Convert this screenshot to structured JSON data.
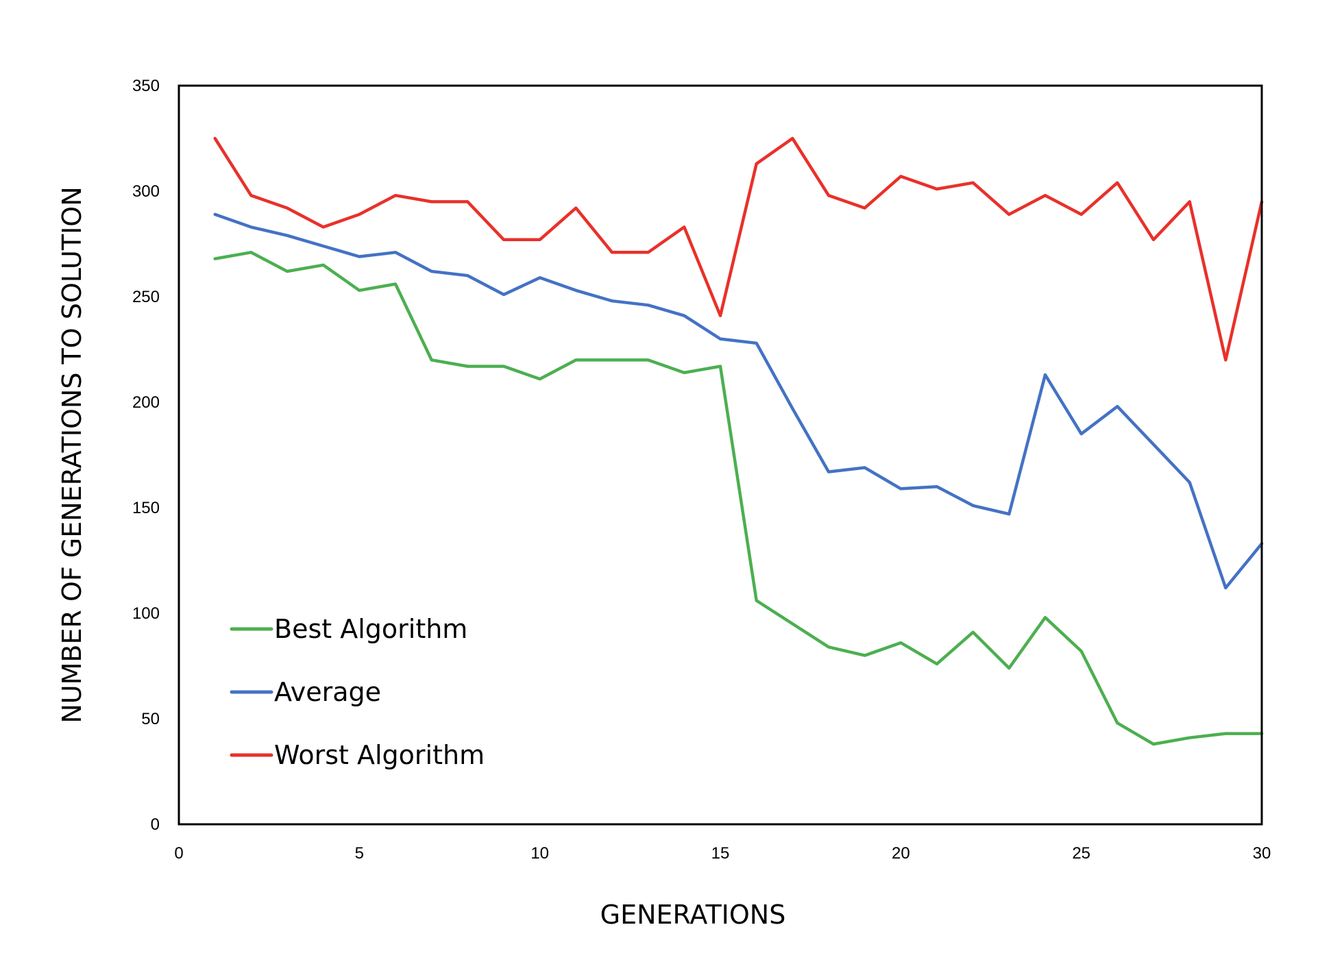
{
  "chart_data": {
    "type": "line",
    "title": "",
    "xlabel": "GENERATIONS",
    "ylabel": "NUMBER OF GENERATIONS TO SOLUTION",
    "xlim": [
      0,
      30
    ],
    "ylim": [
      0,
      350
    ],
    "x_ticks": [
      0,
      5,
      10,
      15,
      20,
      25,
      30
    ],
    "y_ticks": [
      0,
      50,
      100,
      150,
      200,
      250,
      300,
      350
    ],
    "grid": false,
    "legend_position": "lower-left",
    "x": [
      1,
      2,
      3,
      4,
      5,
      6,
      7,
      8,
      9,
      10,
      11,
      12,
      13,
      14,
      15,
      16,
      17,
      18,
      19,
      20,
      21,
      22,
      23,
      24,
      25,
      26,
      27,
      28,
      29,
      30
    ],
    "series": [
      {
        "name": "Best Algorithm",
        "color": "#4caf50",
        "values": [
          268,
          271,
          262,
          265,
          253,
          256,
          220,
          217,
          217,
          211,
          220,
          220,
          220,
          214,
          217,
          106,
          95,
          84,
          80,
          86,
          76,
          91,
          74,
          98,
          82,
          48,
          38,
          41,
          43,
          43
        ]
      },
      {
        "name": "Average",
        "color": "#4472c4",
        "values": [
          289,
          283,
          279,
          274,
          269,
          271,
          262,
          260,
          251,
          259,
          253,
          248,
          246,
          241,
          230,
          228,
          197,
          167,
          169,
          159,
          160,
          151,
          147,
          213,
          185,
          198,
          180,
          162,
          112,
          133
        ]
      },
      {
        "name": "Worst Algorithm",
        "color": "#e8312a",
        "values": [
          325,
          298,
          292,
          283,
          289,
          298,
          295,
          295,
          277,
          277,
          292,
          271,
          271,
          283,
          241,
          313,
          325,
          298,
          292,
          307,
          301,
          304,
          289,
          298,
          289,
          304,
          277,
          295,
          220,
          295
        ]
      }
    ]
  }
}
